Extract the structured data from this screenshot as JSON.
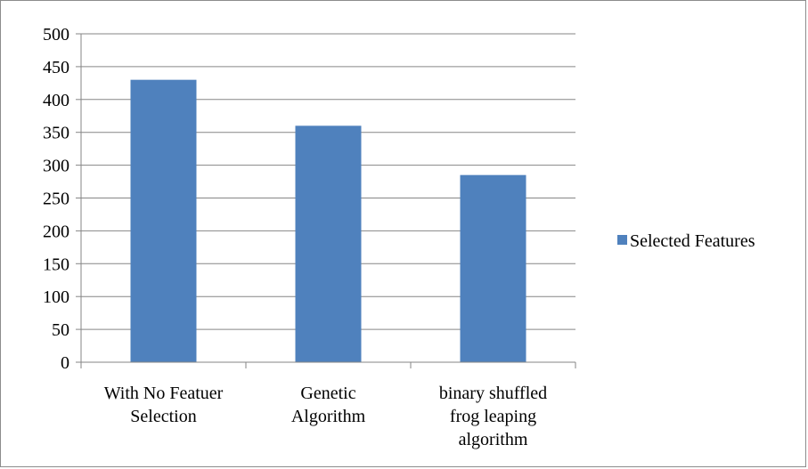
{
  "chart_data": {
    "type": "bar",
    "categories": [
      [
        "With No Featuer",
        "Selection"
      ],
      [
        "Genetic",
        "Algorithm"
      ],
      [
        "binary shuffled",
        "frog leaping",
        "algorithm"
      ]
    ],
    "series": [
      {
        "name": "Selected Features",
        "values": [
          430,
          360,
          285
        ],
        "color": "#4f81bd"
      }
    ],
    "yticks": [
      "0",
      "50",
      "100",
      "150",
      "200",
      "250",
      "300",
      "350",
      "400",
      "450",
      "500"
    ],
    "ylim": [
      0,
      500
    ],
    "grid": true,
    "legend_position": "right",
    "title": "",
    "xlabel": "",
    "ylabel": ""
  }
}
